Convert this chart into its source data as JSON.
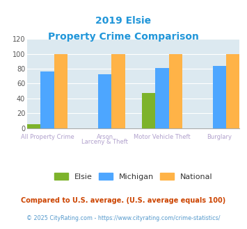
{
  "title_line1": "2019 Elsie",
  "title_line2": "Property Crime Comparison",
  "elsie_values": [
    5,
    0,
    47,
    0
  ],
  "michigan_values": [
    76,
    73,
    81,
    84
  ],
  "national_values": [
    100,
    100,
    100,
    100
  ],
  "elsie_color": "#7db32b",
  "michigan_color": "#4da6ff",
  "national_color": "#ffb347",
  "bg_color": "#dce9f0",
  "title_color": "#2196d9",
  "xlabel_color_top": "#b0a0cc",
  "xlabel_color_bot": "#b0a0cc",
  "ylim": [
    0,
    120
  ],
  "yticks": [
    0,
    20,
    40,
    60,
    80,
    100,
    120
  ],
  "footer_text": "Compared to U.S. average. (U.S. average equals 100)",
  "credit_text": "© 2025 CityRating.com - https://www.cityrating.com/crime-statistics/",
  "footer_color": "#cc4400",
  "credit_color": "#5599cc"
}
